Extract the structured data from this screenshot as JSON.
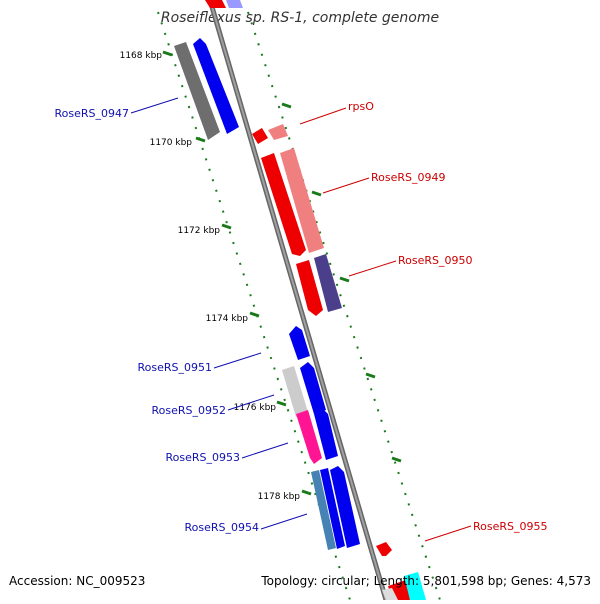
{
  "title": "Roseiflexus sp. RS-1, complete genome",
  "accession_text": "Accession: NC_009523",
  "topology_text": "Topology: circular; Length: 5,801,598 bp; Genes: 4,573",
  "colors": {
    "backbone": "#808080",
    "tick": "#1a7a1a",
    "label_blue": "#1010b0",
    "label_red": "#cc0000",
    "blue": "#0000ee",
    "red": "#ee0000",
    "pink": "#f08080",
    "gray": "#777777",
    "lightgray": "#cccccc",
    "magenta": "#ff1493",
    "steelblue": "#4682b4",
    "purple": "#4b3f8c",
    "cyan": "#00ffff"
  },
  "ticks": [
    {
      "label": "1168 kbp"
    },
    {
      "label": "1170 kbp"
    },
    {
      "label": "1172 kbp"
    },
    {
      "label": "1174 kbp"
    },
    {
      "label": "1176 kbp"
    },
    {
      "label": "1178 kbp"
    }
  ],
  "gene_labels": [
    {
      "name": "RoseRS_0947"
    },
    {
      "name": "rpsO"
    },
    {
      "name": "RoseRS_0949"
    },
    {
      "name": "RoseRS_0950"
    },
    {
      "name": "RoseRS_0951"
    },
    {
      "name": "RoseRS_0952"
    },
    {
      "name": "RoseRS_0953"
    },
    {
      "name": "RoseRS_0954"
    },
    {
      "name": "RoseRS_0955"
    }
  ]
}
